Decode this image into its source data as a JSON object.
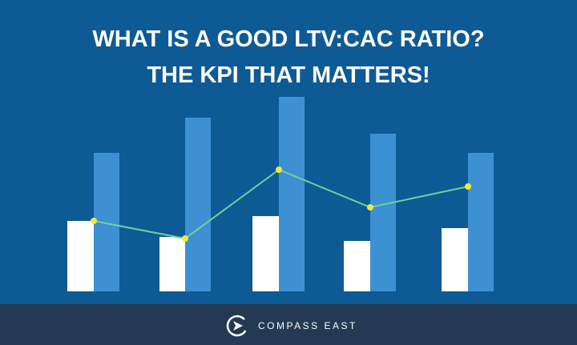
{
  "header": {
    "title_lines": [
      "WHAT IS A GOOD LTV:CAC RATIO?",
      "THE KPI THAT MATTERS!"
    ]
  },
  "footer": {
    "brand": "COMPASS EAST"
  }
}
